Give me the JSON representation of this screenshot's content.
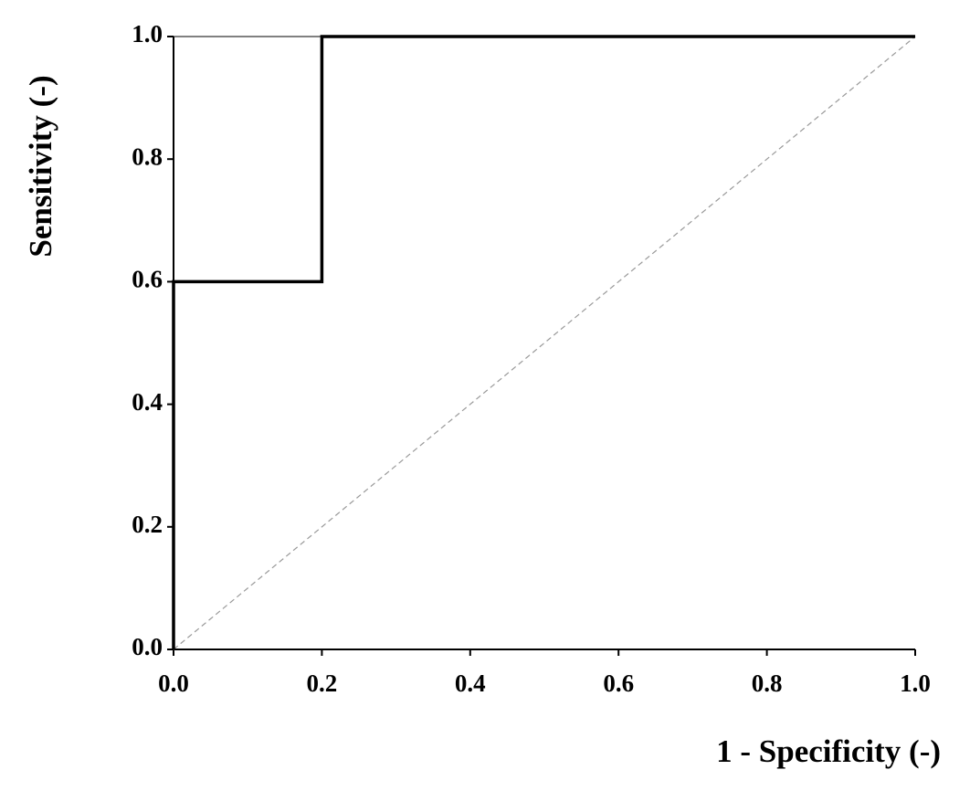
{
  "chart_data": {
    "type": "line",
    "x_label": "1 - Specificity (-)",
    "y_label": "Sensitivity (-)",
    "xlim": [
      0,
      1
    ],
    "ylim": [
      0,
      1
    ],
    "xticks": [
      {
        "value": 0,
        "label": "0.0"
      },
      0.2,
      0.4,
      0.6,
      0.8,
      {
        "value": 1,
        "label": "1.0"
      }
    ],
    "yticks": [
      {
        "value": 0,
        "label": "0.0"
      },
      0.2,
      0.4,
      0.6,
      0.8,
      {
        "value": 1,
        "label": "1.0"
      }
    ],
    "grid": false,
    "series": [
      {
        "color": "#000000",
        "x": [
          0,
          0,
          0.2,
          0.2,
          1
        ],
        "values": [
          0,
          0.6,
          0.6,
          1,
          1
        ]
      },
      {
        "color": "#999999",
        "dashed": true,
        "x": [
          0,
          1
        ],
        "values": [
          0,
          1
        ]
      }
    ]
  }
}
